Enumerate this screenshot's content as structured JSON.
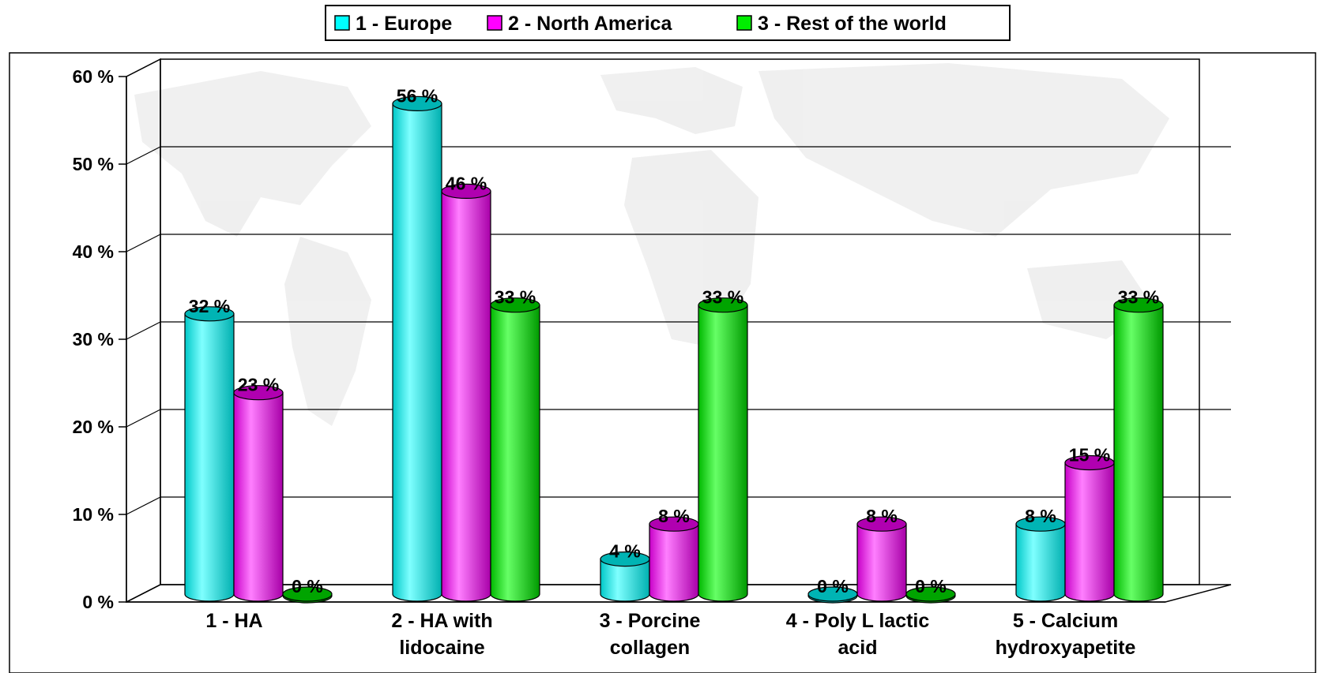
{
  "chart_data": {
    "type": "bar",
    "style": "3d-cylinder",
    "categories": [
      [
        "1 - HA"
      ],
      [
        "2 - HA with",
        "lidocaine"
      ],
      [
        "3 - Porcine",
        "collagen"
      ],
      [
        "4 - Poly L lactic",
        "acid"
      ],
      [
        "5 - Calcium",
        "hydroxyapetite"
      ]
    ],
    "series": [
      {
        "name": "1 - Europe",
        "values": [
          32,
          56,
          4,
          0,
          8
        ],
        "labels": [
          "32 %",
          "56 %",
          "4 %",
          "0 %",
          "8 %"
        ],
        "color": "#00ffff",
        "shade": "#00b4b4"
      },
      {
        "name": "2 - North America",
        "values": [
          23,
          46,
          8,
          8,
          15
        ],
        "labels": [
          "23 %",
          "46 %",
          "8 %",
          "8 %",
          "15 %"
        ],
        "color": "#ff00ff",
        "shade": "#b000b0"
      },
      {
        "name": "3 - Rest of the world",
        "values": [
          0,
          33,
          33,
          0,
          33
        ],
        "labels": [
          "0 %",
          "33 %",
          "33 %",
          "0 %",
          "33 %"
        ],
        "color": "#00ee00",
        "shade": "#00a400"
      }
    ],
    "yticks": [
      0,
      10,
      20,
      30,
      40,
      50,
      60
    ],
    "ytick_labels": [
      "0 %",
      "10 %",
      "20 %",
      "30 %",
      "40 %",
      "50 %",
      "60 %"
    ],
    "ylim": [
      0,
      60
    ],
    "grid": true,
    "legend_position": "top-center",
    "title": "",
    "xlabel": "",
    "ylabel": ""
  }
}
